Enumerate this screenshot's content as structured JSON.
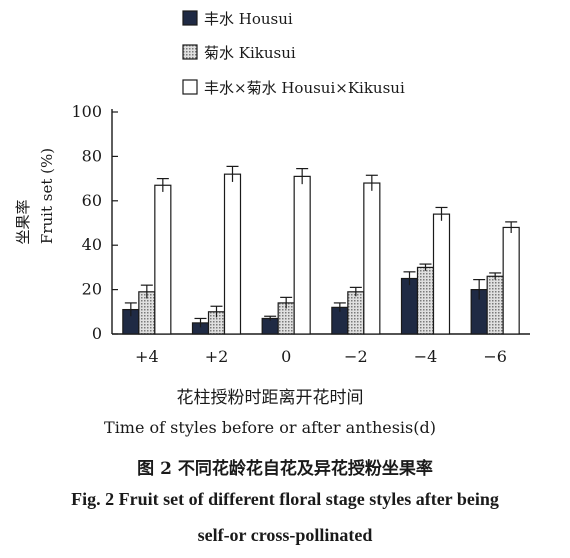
{
  "chart_data": {
    "type": "bar",
    "categories": [
      "+4",
      "+2",
      "0",
      "−2",
      "−4",
      "−6"
    ],
    "series": [
      {
        "name": "丰水 Housui",
        "values": [
          11,
          5,
          7,
          12,
          25,
          20
        ],
        "errors": [
          3,
          2,
          1,
          2,
          3,
          4.5
        ],
        "fill": "#1f2a44",
        "pattern": "solid"
      },
      {
        "name": "菊水 Kikusui",
        "values": [
          19,
          10,
          14,
          19,
          30,
          26
        ],
        "errors": [
          3,
          2.5,
          2.5,
          2,
          1.5,
          1.5
        ],
        "fill": "#bdbdbd",
        "pattern": "dots"
      },
      {
        "name": "丰水×菊水 Housui×Kikusui",
        "values": [
          67,
          72,
          71,
          68,
          54,
          48
        ],
        "errors": [
          3,
          3.5,
          3.5,
          3.5,
          3,
          2.5
        ],
        "fill": "#ffffff",
        "pattern": "none"
      }
    ],
    "ylabel_cn": "坐果率",
    "ylabel_en": "Fruit set (%)",
    "xlabel_cn": "花柱授粉时距离开花时间",
    "xlabel_en": "Time of styles before or after anthesis(d)",
    "ylim": [
      0,
      100
    ],
    "yticks": [
      0,
      20,
      40,
      60,
      80,
      100
    ],
    "grid": false,
    "legend_position": "top-left"
  },
  "caption": {
    "cn": "图 2   不同花龄花自花及异花授粉坐果率",
    "en_line1": "Fig. 2  Fruit set of different floral stage styles after being",
    "en_line2": "self-or cross-pollinated"
  }
}
